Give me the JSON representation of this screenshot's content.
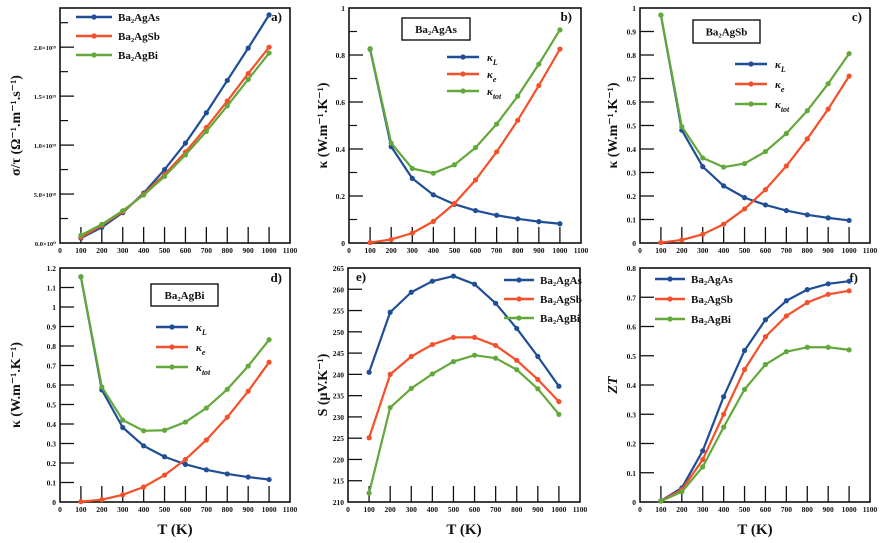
{
  "colors": {
    "blue": "#1f4e96",
    "orange": "#f4502a",
    "green": "#63a83a",
    "axis": "#111111"
  },
  "chart_data": [
    {
      "id": "a",
      "type": "line",
      "panel_label": "a)",
      "title": "",
      "xlabel": "",
      "ylabel": "σ/τ (Ω⁻¹.m⁻¹.s⁻¹)",
      "xlim": [
        0,
        1100
      ],
      "ylim": [
        0,
        2.4e+19
      ],
      "xticks": [
        0,
        100,
        200,
        300,
        400,
        500,
        600,
        700,
        800,
        900,
        1000,
        1100
      ],
      "xtick_labels": [
        "0",
        "100",
        "200",
        "300",
        "400",
        "500",
        "600",
        "700",
        "800",
        "900",
        "1000",
        "1100"
      ],
      "yticks": [
        0,
        5e+18,
        1e+19,
        1.5e+19,
        2e+19
      ],
      "ytick_labels": [
        "0.0×10⁰",
        "5.0×10¹⁸",
        "1.0×10¹⁹",
        "1.5×10¹⁹",
        "2.0×10¹⁹"
      ],
      "yminor": [
        2.5e+18,
        7.5e+18,
        1.25e+19,
        1.75e+19,
        2.25e+19
      ],
      "legend_position": "top-left",
      "grid": false,
      "x": [
        100,
        200,
        300,
        400,
        500,
        600,
        700,
        800,
        900,
        1000
      ],
      "series": [
        {
          "name": "Ba₂AgAs",
          "color_key": "blue",
          "values": [
            5e+17,
            1.6e+18,
            3.1e+18,
            5.1e+18,
            7.5e+18,
            1.02e+19,
            1.33e+19,
            1.66e+19,
            1.99e+19,
            2.33e+19
          ]
        },
        {
          "name": "Ba₂AgSb",
          "color_key": "orange",
          "values": [
            6e+17,
            1.8e+18,
            3.2e+18,
            5e+18,
            7e+18,
            9.3e+18,
            1.18e+19,
            1.45e+19,
            1.73e+19,
            2e+19
          ]
        },
        {
          "name": "Ba₂AgBi",
          "color_key": "green",
          "values": [
            8e+17,
            1.9e+18,
            3.3e+18,
            4.9e+18,
            6.8e+18,
            9e+18,
            1.14e+19,
            1.4e+19,
            1.67e+19,
            1.94e+19
          ]
        }
      ]
    },
    {
      "id": "b",
      "type": "line",
      "panel_label": "b)",
      "box_label": "Ba₂AgAs",
      "title": "",
      "xlabel": "",
      "ylabel": "κ (W.m⁻¹.K⁻¹)",
      "xlim": [
        0,
        1100
      ],
      "ylim": [
        0,
        1.0
      ],
      "xticks": [
        0,
        100,
        200,
        300,
        400,
        500,
        600,
        700,
        800,
        900,
        1000,
        1100
      ],
      "xtick_labels": [
        "0",
        "100",
        "200",
        "300",
        "400",
        "500",
        "600",
        "700",
        "800",
        "900",
        "1000",
        "1100"
      ],
      "yticks": [
        0,
        0.2,
        0.4,
        0.6,
        0.8,
        1.0
      ],
      "ytick_labels": [
        "0",
        "0.2",
        "0.4",
        "0.6",
        "0.8",
        "1"
      ],
      "yminor": [
        0.1,
        0.3,
        0.5,
        0.7,
        0.9
      ],
      "legend_position": "center",
      "grid": false,
      "x": [
        100,
        200,
        300,
        400,
        500,
        600,
        700,
        800,
        900,
        1000
      ],
      "series": [
        {
          "name": "κ",
          "sub": "L",
          "color_key": "blue",
          "values": [
            0.825,
            0.41,
            0.275,
            0.205,
            0.165,
            0.138,
            0.118,
            0.103,
            0.091,
            0.082
          ]
        },
        {
          "name": "κ",
          "sub": "e",
          "color_key": "orange",
          "values": [
            0.002,
            0.015,
            0.042,
            0.092,
            0.168,
            0.268,
            0.388,
            0.522,
            0.67,
            0.825
          ]
        },
        {
          "name": "κ",
          "sub": "tot",
          "color_key": "green",
          "values": [
            0.827,
            0.425,
            0.317,
            0.297,
            0.333,
            0.406,
            0.506,
            0.625,
            0.761,
            0.907
          ]
        }
      ]
    },
    {
      "id": "c",
      "type": "line",
      "panel_label": "c)",
      "box_label": "Ba₂AgSb",
      "title": "",
      "xlabel": "",
      "ylabel": "κ (W.m⁻¹.K⁻¹)",
      "xlim": [
        0,
        1100
      ],
      "ylim": [
        0,
        1.0
      ],
      "xticks": [
        0,
        100,
        200,
        300,
        400,
        500,
        600,
        700,
        800,
        900,
        1000,
        1100
      ],
      "xtick_labels": [
        "0",
        "100",
        "200",
        "300",
        "400",
        "500",
        "600",
        "700",
        "800",
        "900",
        "1000",
        "1100"
      ],
      "yticks": [
        0,
        0.1,
        0.2,
        0.3,
        0.4,
        0.5,
        0.6,
        0.7,
        0.8,
        0.9,
        1.0
      ],
      "ytick_labels": [
        "0",
        "0.1",
        "0.2",
        "0.3",
        "0.4",
        "0.5",
        "0.6",
        "0.7",
        "0.8",
        "0.9",
        "1"
      ],
      "yminor": [],
      "legend_position": "center",
      "grid": false,
      "x": [
        100,
        200,
        300,
        400,
        500,
        600,
        700,
        800,
        900,
        1000
      ],
      "series": [
        {
          "name": "κ",
          "sub": "L",
          "color_key": "blue",
          "values": [
            0.97,
            0.48,
            0.325,
            0.243,
            0.193,
            0.162,
            0.138,
            0.12,
            0.107,
            0.096
          ]
        },
        {
          "name": "κ",
          "sub": "e",
          "color_key": "orange",
          "values": [
            0.002,
            0.013,
            0.037,
            0.08,
            0.145,
            0.227,
            0.328,
            0.443,
            0.57,
            0.71
          ]
        },
        {
          "name": "κ",
          "sub": "tot",
          "color_key": "green",
          "values": [
            0.97,
            0.495,
            0.362,
            0.323,
            0.338,
            0.389,
            0.466,
            0.563,
            0.678,
            0.806
          ]
        }
      ]
    },
    {
      "id": "d",
      "type": "line",
      "panel_label": "d)",
      "box_label": "Ba₂AgBi",
      "title": "",
      "xlabel": "T (K)",
      "ylabel": "κ (W.m⁻¹.K⁻¹)",
      "xlim": [
        0,
        1100
      ],
      "ylim": [
        0,
        1.2
      ],
      "xticks": [
        0,
        100,
        200,
        300,
        400,
        500,
        600,
        700,
        800,
        900,
        1000,
        1100
      ],
      "xtick_labels": [
        "0",
        "100",
        "200",
        "300",
        "400",
        "500",
        "600",
        "700",
        "800",
        "900",
        "1000",
        "1100"
      ],
      "yticks": [
        0,
        0.1,
        0.2,
        0.3,
        0.4,
        0.5,
        0.6,
        0.7,
        0.8,
        0.9,
        1.0,
        1.1,
        1.2
      ],
      "ytick_labels": [
        "0",
        "0.1",
        "0.2",
        "0.3",
        "0.4",
        "0.5",
        "0.6",
        "0.7",
        "0.8",
        "0.9",
        "1",
        "1.1",
        "1.2"
      ],
      "yminor": [],
      "legend_position": "center",
      "grid": false,
      "x": [
        100,
        200,
        300,
        400,
        500,
        600,
        700,
        800,
        900,
        1000
      ],
      "series": [
        {
          "name": "κ",
          "sub": "L",
          "color_key": "blue",
          "values": [
            1.155,
            0.575,
            0.382,
            0.288,
            0.232,
            0.193,
            0.165,
            0.144,
            0.128,
            0.115
          ]
        },
        {
          "name": "κ",
          "sub": "e",
          "color_key": "orange",
          "values": [
            0.002,
            0.012,
            0.037,
            0.077,
            0.138,
            0.218,
            0.318,
            0.435,
            0.568,
            0.717
          ]
        },
        {
          "name": "κ",
          "sub": "tot",
          "color_key": "green",
          "values": [
            1.155,
            0.59,
            0.42,
            0.365,
            0.368,
            0.41,
            0.482,
            0.578,
            0.697,
            0.832
          ]
        }
      ]
    },
    {
      "id": "e",
      "type": "line",
      "panel_label": "e)",
      "title": "",
      "xlabel": "T (K)",
      "ylabel": "S (μV.K⁻¹)",
      "xlim": [
        0,
        1100
      ],
      "ylim": [
        210,
        265
      ],
      "xticks": [
        0,
        100,
        200,
        300,
        400,
        500,
        600,
        700,
        800,
        900,
        1000,
        1100
      ],
      "xtick_labels": [
        "0",
        "100",
        "200",
        "300",
        "400",
        "500",
        "600",
        "700",
        "800",
        "900",
        "1000",
        "1100"
      ],
      "yticks": [
        210,
        215,
        220,
        225,
        230,
        235,
        240,
        245,
        250,
        255,
        260,
        265
      ],
      "ytick_labels": [
        "210",
        "215",
        "220",
        "225",
        "230",
        "235",
        "240",
        "245",
        "250",
        "255",
        "260",
        "265"
      ],
      "yminor": [],
      "legend_position": "top-right",
      "grid": false,
      "x": [
        100,
        200,
        300,
        400,
        500,
        600,
        700,
        800,
        900,
        1000
      ],
      "series": [
        {
          "name": "Ba₂AgAs",
          "color_key": "blue",
          "values": [
            240.5,
            254.6,
            259.3,
            261.9,
            263.1,
            261.2,
            256.7,
            250.8,
            244.2,
            237.2
          ]
        },
        {
          "name": "Ba₂AgSb",
          "color_key": "orange",
          "values": [
            225.1,
            240.0,
            244.2,
            247.0,
            248.7,
            248.7,
            246.8,
            243.3,
            238.8,
            233.6
          ]
        },
        {
          "name": "Ba₂AgBi",
          "color_key": "green",
          "values": [
            212.1,
            232.2,
            236.7,
            240.1,
            243.0,
            244.5,
            243.8,
            241.1,
            236.6,
            230.6
          ]
        }
      ]
    },
    {
      "id": "f",
      "type": "line",
      "panel_label": "f)",
      "title": "",
      "xlabel": "T (K)",
      "ylabel": "ZT",
      "xlim": [
        0,
        1100
      ],
      "ylim": [
        0,
        0.8
      ],
      "xticks": [
        0,
        100,
        200,
        300,
        400,
        500,
        600,
        700,
        800,
        900,
        1000,
        1100
      ],
      "xtick_labels": [
        "0",
        "100",
        "200",
        "300",
        "400",
        "500",
        "600",
        "700",
        "800",
        "900",
        "1000",
        "1100"
      ],
      "yticks": [
        0,
        0.1,
        0.2,
        0.3,
        0.4,
        0.5,
        0.6,
        0.7,
        0.8
      ],
      "ytick_labels": [
        "0",
        "0.1",
        "0.2",
        "0.3",
        "0.4",
        "0.5",
        "0.6",
        "0.7",
        "0.8"
      ],
      "yminor": [],
      "legend_position": "top-left",
      "grid": false,
      "x": [
        100,
        200,
        300,
        400,
        500,
        600,
        700,
        800,
        900,
        1000
      ],
      "series": [
        {
          "name": "Ba₂AgAs",
          "color_key": "blue",
          "values": [
            0.004,
            0.048,
            0.175,
            0.36,
            0.518,
            0.623,
            0.688,
            0.726,
            0.746,
            0.755
          ]
        },
        {
          "name": "Ba₂AgSb",
          "color_key": "orange",
          "values": [
            0.004,
            0.042,
            0.145,
            0.3,
            0.453,
            0.565,
            0.636,
            0.682,
            0.71,
            0.722
          ]
        },
        {
          "name": "Ba₂AgBi",
          "color_key": "green",
          "values": [
            0.003,
            0.035,
            0.12,
            0.256,
            0.385,
            0.47,
            0.514,
            0.529,
            0.529,
            0.52
          ]
        }
      ]
    }
  ]
}
